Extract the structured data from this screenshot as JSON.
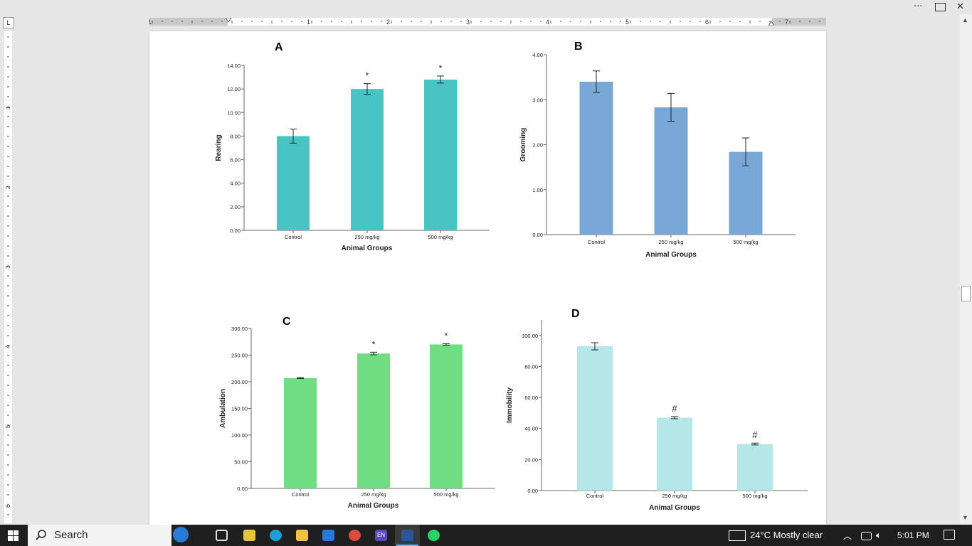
{
  "window": {
    "more_label": "···",
    "close_label": "✕"
  },
  "ruler": {
    "horizontal_marks": [
      "1",
      "1",
      "2",
      "3",
      "4",
      "5",
      "6",
      "7"
    ],
    "vertical_marks": [
      "1",
      "2",
      "3",
      "4",
      "5",
      "6"
    ]
  },
  "taskbar": {
    "search_placeholder": "Search",
    "weather": "24°C  Mostly clear",
    "time": "5:01 PM",
    "lang_badge": "EN"
  },
  "chart_data": [
    {
      "type": "bar",
      "panel": "A",
      "categories": [
        "Control",
        "250 mg/kg",
        "500 mg/kg"
      ],
      "values": [
        8.0,
        12.0,
        12.8
      ],
      "errors": [
        0.6,
        0.45,
        0.3
      ],
      "annotations": [
        "",
        "*",
        "*"
      ],
      "xlabel": "Animal Groups",
      "ylabel": "Rearing",
      "ylim": [
        0,
        14
      ],
      "yticks": [
        "0.00",
        "2.00",
        "4.00",
        "6.00",
        "8.00",
        "10.00",
        "12.00",
        "14.00"
      ],
      "color": "#48c4c4"
    },
    {
      "type": "bar",
      "panel": "B",
      "categories": [
        "Control",
        "250 mg/kg",
        "500 mg/kg"
      ],
      "values": [
        3.4,
        2.83,
        1.84
      ],
      "errors": [
        0.24,
        0.31,
        0.31
      ],
      "annotations": [
        "",
        "",
        ""
      ],
      "xlabel": "Animal Groups",
      "ylabel": "Grooming",
      "ylim": [
        0,
        4
      ],
      "yticks": [
        "0.00",
        "1.00",
        "2.00",
        "3.00",
        "4.00"
      ],
      "color": "#79a8d6"
    },
    {
      "type": "bar",
      "panel": "C",
      "categories": [
        "Control",
        "250 mg/kg",
        "500 mg/kg"
      ],
      "values": [
        207,
        253,
        270
      ],
      "errors": [
        1.0,
        2.5,
        1.5
      ],
      "annotations": [
        "",
        "*",
        "*"
      ],
      "xlabel": "Animal Groups",
      "ylabel": "Ambulation",
      "ylim": [
        0,
        300
      ],
      "yticks": [
        "0.00",
        "50.00",
        "100.00",
        "150.00",
        "200.00",
        "250.00",
        "300.00"
      ],
      "color": "#6fdd82"
    },
    {
      "type": "bar",
      "panel": "D",
      "categories": [
        "Control",
        "250 mg/kg",
        "500 mg/kg"
      ],
      "values": [
        93,
        47,
        30
      ],
      "errors": [
        2.3,
        0.7,
        0.6
      ],
      "annotations": [
        "",
        "#",
        "#"
      ],
      "xlabel": "Animal Groups",
      "ylabel": "Immobility",
      "ylim": [
        0,
        110
      ],
      "yticks": [
        "0.00",
        "20.00",
        "40.00",
        "60.00",
        "80.00",
        "100.00"
      ],
      "color": "#b5e6e8"
    }
  ]
}
